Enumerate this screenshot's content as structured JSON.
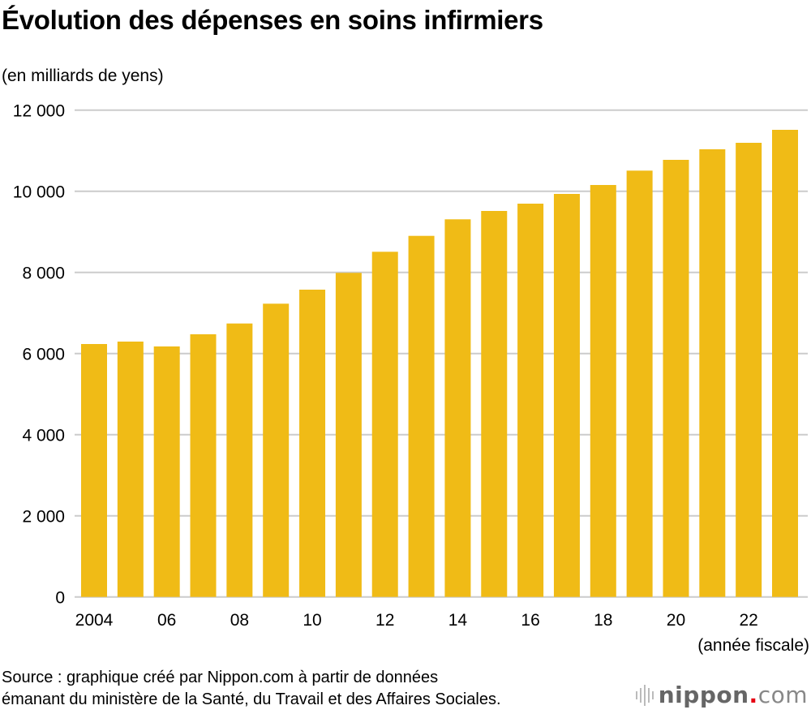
{
  "chart_data": {
    "type": "bar",
    "title": "Évolution des dépenses en soins infirmiers",
    "ylabel": "(en milliards de yens)",
    "xlabel": "(année fiscale)",
    "categories": [
      "2004",
      "2005",
      "2006",
      "2007",
      "2008",
      "2009",
      "2010",
      "2011",
      "2012",
      "2013",
      "2014",
      "2015",
      "2016",
      "2017",
      "2018",
      "2019",
      "2020",
      "2021",
      "2022",
      "2023"
    ],
    "x_tick_labels": [
      "2004",
      "",
      "06",
      "",
      "08",
      "",
      "10",
      "",
      "12",
      "",
      "14",
      "",
      "16",
      "",
      "18",
      "",
      "20",
      "",
      "22",
      ""
    ],
    "values": [
      6234,
      6294,
      6174,
      6474,
      6740,
      7228,
      7574,
      7988,
      8508,
      8900,
      9308,
      9514,
      9694,
      9934,
      10154,
      10508,
      10774,
      11034,
      11194,
      11514
    ],
    "ylim": [
      0,
      12000
    ],
    "y_ticks": [
      0,
      2000,
      4000,
      6000,
      8000,
      10000,
      12000
    ],
    "y_tick_labels": [
      "0",
      "2 000",
      "4 000",
      "6 000",
      "8 000",
      "10 000",
      "12 000"
    ],
    "grid": true,
    "bar_color": "#f0bb16",
    "grid_color": "#cccccc"
  },
  "source": {
    "line1": "Source : graphique créé par Nippon.com à partir de données",
    "line2": "émanant du ministère de la Santé, du Travail et des Affaires Sociales."
  },
  "logo": {
    "name": "nippon",
    "dot": ".",
    "suffix": "com",
    "accent": "#e60012"
  }
}
